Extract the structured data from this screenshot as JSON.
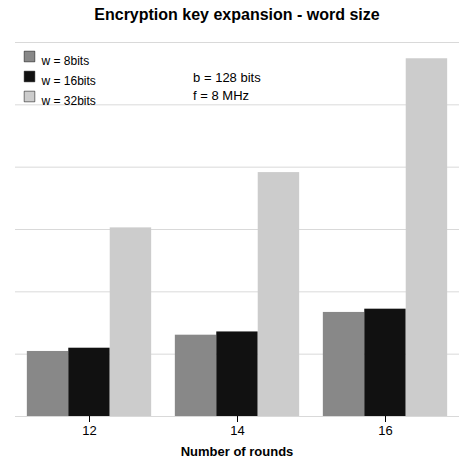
{
  "chart_data": {
    "type": "bar",
    "title": "Encryption key expansion - word size",
    "xlabel": "Number of rounds",
    "categories": [
      "12",
      "14",
      "16"
    ],
    "series": [
      {
        "name": "w = 8bits",
        "color": "#888888",
        "values": [
          0.2,
          0.25,
          0.32
        ]
      },
      {
        "name": "w = 16bits",
        "color": "#111111",
        "values": [
          0.21,
          0.26,
          0.33
        ]
      },
      {
        "name": "w = 32bits",
        "color": "#cccccc",
        "values": [
          0.58,
          0.75,
          1.1
        ]
      }
    ],
    "ylim": [
      0,
      1.15
    ],
    "yticks": [
      0,
      0.19166666666666665,
      0.3833333333333333,
      0.575,
      0.7666666666666666,
      0.9583333333333333,
      1.15
    ],
    "grid": true,
    "tick_labels": "x",
    "legend": "upper left",
    "annotations": [
      "b = 128 bits",
      "f = 8 MHz"
    ]
  }
}
